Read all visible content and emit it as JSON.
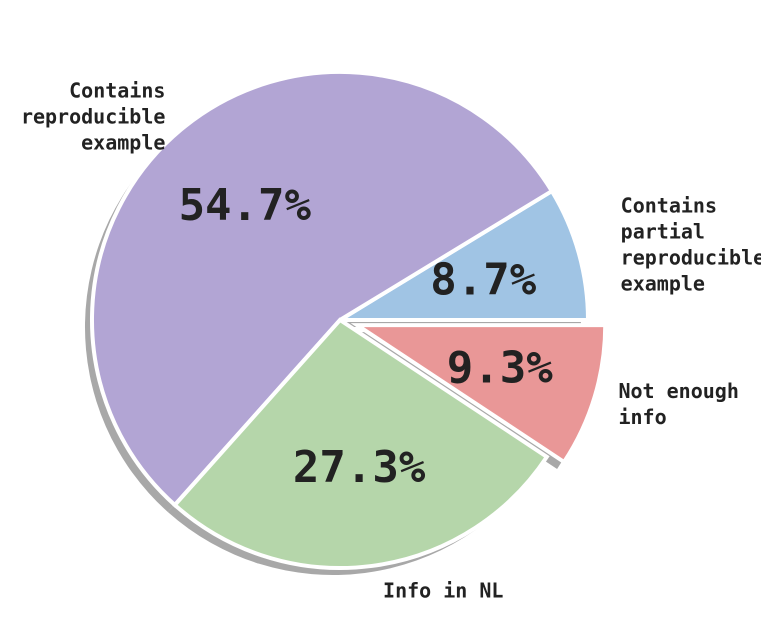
{
  "chart_data": {
    "type": "pie",
    "slices": [
      {
        "label": "Contains partial reproducible example",
        "label_lines": [
          "Contains",
          "partial",
          "reproducible",
          "example"
        ],
        "value": 8.7,
        "pct_text": "8.7%",
        "color": "#a0c4e4",
        "explode": false
      },
      {
        "label": "Contains reproducible example",
        "label_lines": [
          "Contains",
          "reproducible",
          "example"
        ],
        "value": 54.7,
        "pct_text": "54.7%",
        "color": "#b2a5d4",
        "explode": false
      },
      {
        "label": "Info in NL",
        "label_lines": [
          "Info in NL"
        ],
        "value": 27.3,
        "pct_text": "27.3%",
        "color": "#b5d6aa",
        "explode": false
      },
      {
        "label": "Not enough info",
        "label_lines": [
          "Not enough",
          "info"
        ],
        "value": 9.3,
        "pct_text": "9.3%",
        "color": "#e99797",
        "explode": true
      }
    ],
    "start_angle_deg": 0,
    "direction": "counterclockwise",
    "shadow": true,
    "legend": "none",
    "title": ""
  }
}
